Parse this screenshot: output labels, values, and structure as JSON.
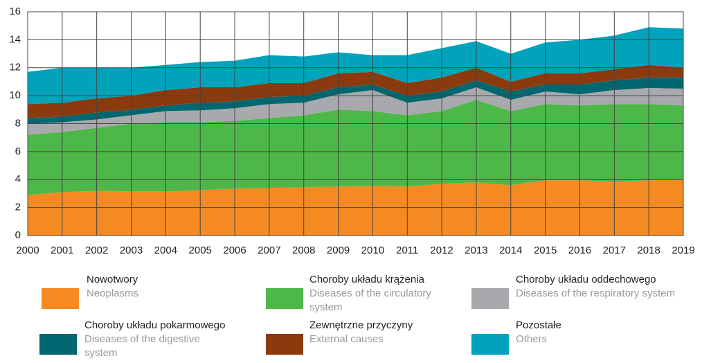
{
  "chart_data": {
    "type": "stacked_area",
    "x": [
      2000,
      2001,
      2002,
      2003,
      2004,
      2005,
      2006,
      2007,
      2008,
      2009,
      2010,
      2011,
      2012,
      2013,
      2014,
      2015,
      2016,
      2017,
      2018,
      2019
    ],
    "xlim": [
      2000,
      2019
    ],
    "xticks": [
      2000,
      2001,
      2002,
      2003,
      2004,
      2005,
      2006,
      2007,
      2008,
      2009,
      2010,
      2011,
      2012,
      2013,
      2014,
      2015,
      2016,
      2017,
      2018,
      2019
    ],
    "ylim": [
      0,
      16
    ],
    "yticks": [
      0,
      2,
      4,
      6,
      8,
      10,
      12,
      14,
      16
    ],
    "grid": true,
    "series": [
      {
        "name": "Nowotwory",
        "name_en": "Neoplasms",
        "color": "#f58a22",
        "values": [
          2.9,
          3.1,
          3.2,
          3.15,
          3.15,
          3.25,
          3.35,
          3.4,
          3.45,
          3.5,
          3.55,
          3.5,
          3.7,
          3.8,
          3.6,
          3.95,
          3.95,
          3.85,
          3.95,
          4.0
        ]
      },
      {
        "name": "Choroby układu krążenia",
        "name_en": "Diseases of the circulatory system",
        "color": "#4db848",
        "values": [
          4.3,
          4.3,
          4.5,
          4.85,
          4.95,
          4.85,
          4.85,
          5.0,
          5.15,
          5.5,
          5.35,
          5.1,
          5.2,
          5.9,
          5.3,
          5.45,
          5.35,
          5.55,
          5.45,
          5.3
        ]
      },
      {
        "name": "Choroby układu oddechowego",
        "name_en": "Diseases of the respiratory system",
        "color": "#a7a9ac",
        "values": [
          0.8,
          0.7,
          0.6,
          0.6,
          0.8,
          0.85,
          0.9,
          1.0,
          0.9,
          1.1,
          1.5,
          0.9,
          0.9,
          0.9,
          0.8,
          0.9,
          0.8,
          1.0,
          1.15,
          1.2
        ]
      },
      {
        "name": "Choroby układu pokarmowego",
        "name_en": "Diseases of the digestive system",
        "color": "#006770",
        "values": [
          0.4,
          0.4,
          0.5,
          0.4,
          0.4,
          0.55,
          0.5,
          0.5,
          0.5,
          0.5,
          0.4,
          0.5,
          0.5,
          0.5,
          0.6,
          0.5,
          0.7,
          0.7,
          0.75,
          0.8
        ]
      },
      {
        "name": "Zewnętrzne przyczyny",
        "name_en": "External causes",
        "color": "#8b3a0e",
        "values": [
          1.0,
          1.0,
          1.0,
          1.0,
          1.1,
          1.1,
          1.0,
          1.0,
          0.9,
          1.0,
          0.9,
          0.9,
          1.0,
          0.9,
          0.7,
          0.8,
          0.8,
          0.8,
          0.9,
          0.7
        ]
      },
      {
        "name": "Pozostałe",
        "name_en": "Others",
        "color": "#00a3bb",
        "values": [
          2.3,
          2.5,
          2.2,
          2.0,
          1.8,
          1.8,
          1.9,
          2.0,
          1.9,
          1.5,
          1.2,
          2.0,
          2.1,
          1.9,
          2.0,
          2.2,
          2.4,
          2.4,
          2.7,
          2.8
        ]
      }
    ]
  }
}
